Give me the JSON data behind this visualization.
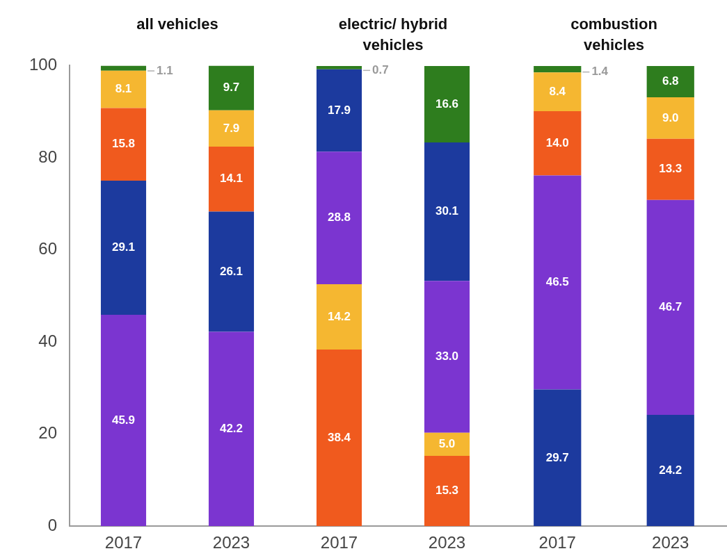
{
  "chart_data": [
    {
      "type": "bar",
      "title": "all vehicles",
      "categories": [
        "2017",
        "2023"
      ],
      "stacked": true,
      "ylim": [
        0,
        100
      ],
      "yticks": [
        0,
        20,
        40,
        60,
        80,
        100
      ],
      "grid": false,
      "legend": false,
      "series": [
        {
          "color": "#7b35d0",
          "values": [
            45.9,
            42.2
          ],
          "value_labels": [
            "45.9",
            "42.2"
          ]
        },
        {
          "color": "#1c3a9e",
          "values": [
            29.1,
            26.1
          ],
          "value_labels": [
            "29.1",
            "26.1"
          ]
        },
        {
          "color": "#f05a1e",
          "values": [
            15.8,
            14.1
          ],
          "value_labels": [
            "15.8",
            "14.1"
          ]
        },
        {
          "color": "#f5b731",
          "values": [
            8.1,
            7.9
          ],
          "value_labels": [
            "8.1",
            "7.9"
          ]
        },
        {
          "color": "#2e7d1e",
          "values": [
            1.1,
            9.7
          ],
          "value_labels": [
            "1.1",
            "9.7"
          ]
        }
      ]
    },
    {
      "type": "bar",
      "title": "electric/ hybrid vehicles",
      "categories": [
        "2017",
        "2023"
      ],
      "stacked": true,
      "ylim": [
        0,
        100
      ],
      "yticks": [
        0,
        20,
        40,
        60,
        80,
        100
      ],
      "tick_labels": "x",
      "grid": false,
      "legend": false,
      "series": [
        {
          "color": "#f05a1e",
          "values": [
            38.4,
            15.3
          ],
          "value_labels": [
            "38.4",
            "15.3"
          ]
        },
        {
          "color": "#f5b731",
          "values": [
            14.2,
            5.0
          ],
          "value_labels": [
            "14.2",
            "5.0"
          ]
        },
        {
          "color": "#7b35d0",
          "values": [
            28.8,
            33.0
          ],
          "value_labels": [
            "28.8",
            "33.0"
          ]
        },
        {
          "color": "#1c3a9e",
          "values": [
            17.9,
            30.1
          ],
          "value_labels": [
            "17.9",
            "30.1"
          ]
        },
        {
          "color": "#2e7d1e",
          "values": [
            0.7,
            16.6
          ],
          "value_labels": [
            "0.7",
            "16.6"
          ]
        }
      ]
    },
    {
      "type": "bar",
      "title": "combustion vehicles",
      "categories": [
        "2017",
        "2023"
      ],
      "stacked": true,
      "ylim": [
        0,
        100
      ],
      "yticks": [
        0,
        20,
        40,
        60,
        80,
        100
      ],
      "tick_labels": "x",
      "grid": false,
      "legend": false,
      "series": [
        {
          "color": "#1c3a9e",
          "values": [
            29.7,
            24.2
          ],
          "value_labels": [
            "29.7",
            "24.2"
          ]
        },
        {
          "color": "#7b35d0",
          "values": [
            46.5,
            46.7
          ],
          "value_labels": [
            "46.5",
            "46.7"
          ]
        },
        {
          "color": "#f05a1e",
          "values": [
            14.0,
            13.3
          ],
          "value_labels": [
            "14.0",
            "13.3"
          ]
        },
        {
          "color": "#f5b731",
          "values": [
            8.4,
            9.0
          ],
          "value_labels": [
            "8.4",
            "9.0"
          ]
        },
        {
          "color": "#2e7d1e",
          "values": [
            1.4,
            6.8
          ],
          "value_labels": [
            "1.4",
            "6.8"
          ]
        }
      ]
    }
  ]
}
